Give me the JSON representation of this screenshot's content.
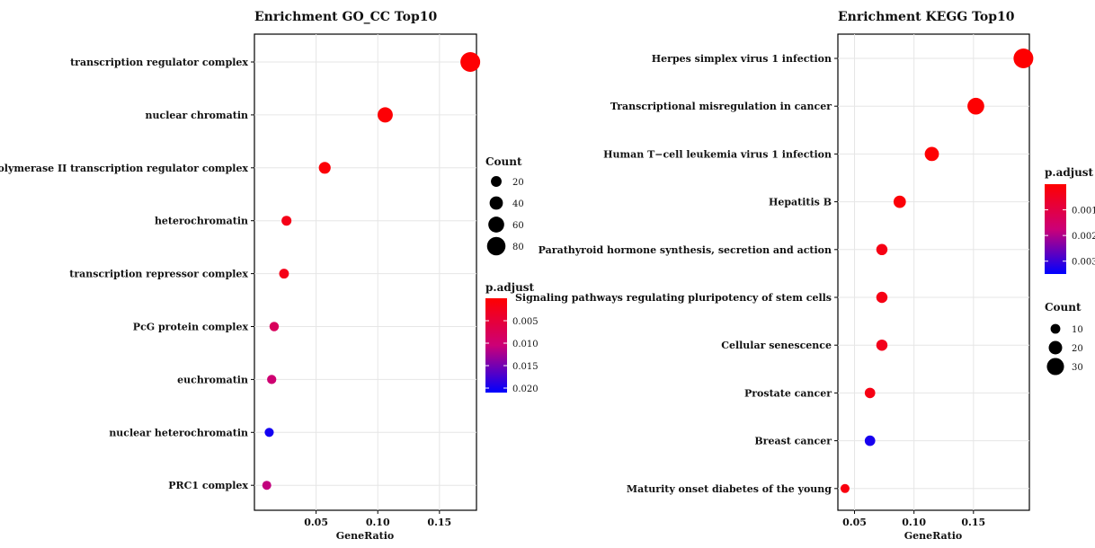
{
  "chart_data": [
    {
      "type": "scatter",
      "title": "Enrichment GO_CC Top10",
      "xlabel": "GeneRatio",
      "ylabel": "",
      "xlim": [
        0.0,
        0.18
      ],
      "xticks": [
        0.05,
        0.1,
        0.15
      ],
      "xtick_labels": [
        "0.05",
        "0.10",
        "0.15"
      ],
      "grid": true,
      "categories": [
        "transcription regulator complex",
        "nuclear chromatin",
        "RNA polymerase II transcription regulator complex",
        "heterochromatin",
        "transcription repressor complex",
        "PcG protein complex",
        "euchromatin",
        "nuclear heterochromatin",
        "PRC1 complex"
      ],
      "gene_ratio": [
        0.175,
        0.106,
        0.057,
        0.026,
        0.024,
        0.016,
        0.014,
        0.012,
        0.01
      ],
      "count": [
        90,
        55,
        29,
        14,
        13,
        10,
        9,
        8,
        7
      ],
      "p_adjust": [
        0.0003,
        0.0004,
        0.0006,
        0.002,
        0.002,
        0.008,
        0.01,
        0.02,
        0.011
      ],
      "size_legend": {
        "title": "Count",
        "values": [
          20,
          40,
          60,
          80
        ],
        "labels": [
          "20",
          "40",
          "60",
          "80"
        ]
      },
      "color_legend": {
        "title": "p.adjust",
        "min": 0.0,
        "max": 0.021,
        "ticks": [
          0.005,
          0.01,
          0.015,
          0.02
        ],
        "labels": [
          "0.005",
          "0.010",
          "0.015",
          "0.020"
        ],
        "low_color": "#ff0000",
        "high_color": "#0000ff"
      }
    },
    {
      "type": "scatter",
      "title": "Enrichment KEGG Top10",
      "xlabel": "GeneRatio",
      "ylabel": "",
      "xlim": [
        0.036,
        0.197
      ],
      "xticks": [
        0.05,
        0.1,
        0.15
      ],
      "xtick_labels": [
        "0.05",
        "0.10",
        "0.15"
      ],
      "grid": true,
      "categories": [
        "Herpes simplex virus 1 infection",
        "Transcriptional misregulation in cancer",
        "Human T−cell leukemia virus 1 infection",
        "Hepatitis B",
        "Parathyroid hormone synthesis, secretion and action",
        "Signaling pathways regulating pluripotency of stem cells",
        "Cellular senescence",
        "Prostate cancer",
        "Breast cancer",
        "Maturity onset diabetes of the young"
      ],
      "gene_ratio": [
        0.192,
        0.152,
        0.115,
        0.088,
        0.073,
        0.073,
        0.073,
        0.063,
        0.063,
        0.042
      ],
      "count": [
        37,
        29,
        22,
        17,
        14,
        14,
        14,
        12,
        12,
        8
      ],
      "p_adjust": [
        2e-05,
        3e-05,
        4e-05,
        0.0001,
        0.0003,
        0.0003,
        0.0004,
        0.0003,
        0.0033,
        0.0002
      ],
      "size_legend": {
        "title": "Count",
        "values": [
          10,
          20,
          30
        ],
        "labels": [
          "10",
          "20",
          "30"
        ]
      },
      "color_legend": {
        "title": "p.adjust",
        "min": 0.0,
        "max": 0.0035,
        "ticks": [
          0.001,
          0.002,
          0.003
        ],
        "labels": [
          "0.001",
          "0.002",
          "0.003"
        ],
        "low_color": "#ff0000",
        "high_color": "#0000ff"
      }
    }
  ]
}
